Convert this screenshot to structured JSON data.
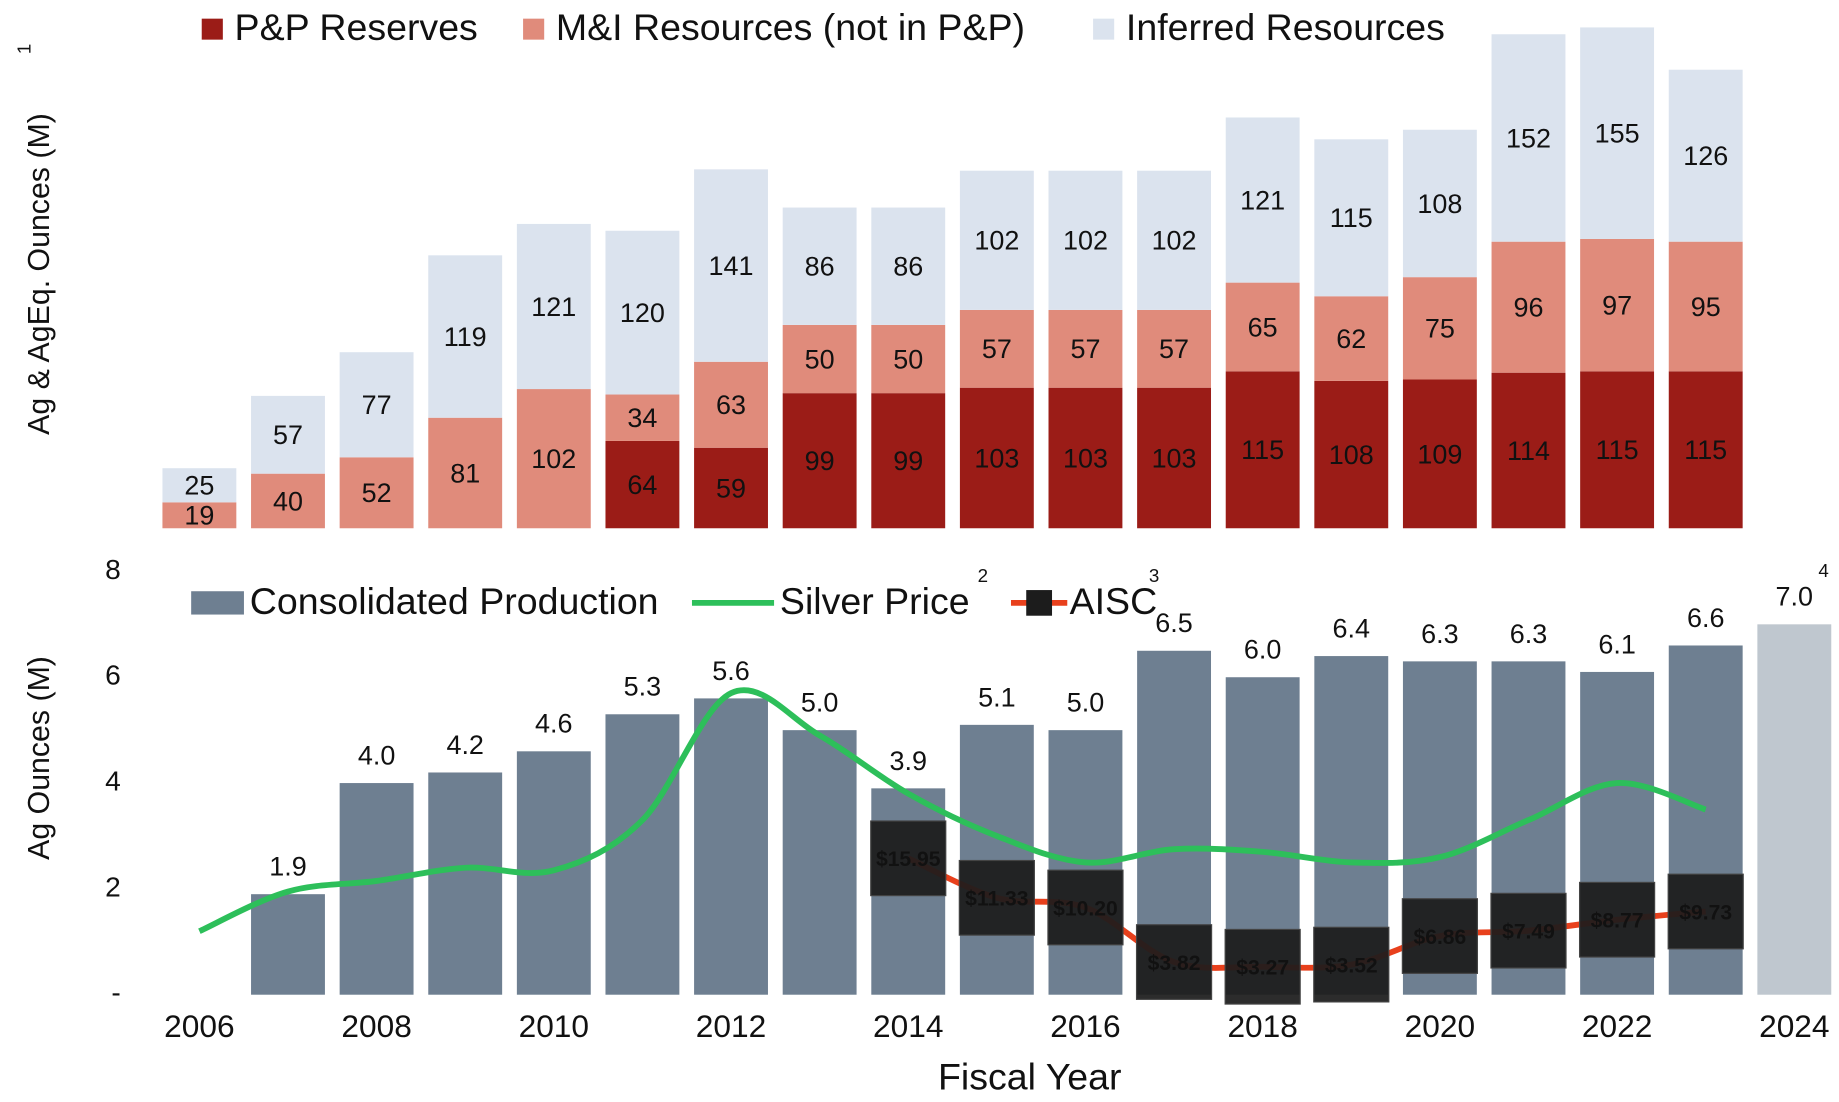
{
  "chart_data": [
    {
      "type": "stacked_bar",
      "ylabel": "Ag & AgEq. Ounces (M)",
      "ylabel_note": "1",
      "ylim": [
        0,
        370
      ],
      "series": [
        {
          "name": "P&P Reserves",
          "color": "#9b1c17",
          "values": [
            null,
            null,
            null,
            null,
            null,
            64,
            59,
            99,
            99,
            103,
            103,
            103,
            115,
            108,
            109,
            114,
            115,
            115
          ]
        },
        {
          "name": "M&I Resources (not in P&P)",
          "color": "#e08b7b",
          "values": [
            19,
            40,
            52,
            81,
            102,
            34,
            63,
            50,
            50,
            57,
            57,
            57,
            65,
            62,
            75,
            96,
            97,
            95
          ]
        },
        {
          "name": "Inferred Resources",
          "color": "#dbe3ee",
          "values": [
            25,
            57,
            77,
            119,
            121,
            120,
            141,
            86,
            86,
            102,
            102,
            102,
            121,
            115,
            108,
            152,
            155,
            126
          ]
        }
      ]
    },
    {
      "type": "bar_line",
      "xlabel": "Fiscal Year",
      "ylabel": "Ag Ounces (M)",
      "categories": [
        "2006",
        null,
        "2008",
        null,
        "2010",
        null,
        "2012",
        null,
        "2014",
        null,
        "2016",
        null,
        "2018",
        null,
        "2020",
        null,
        "2022",
        null,
        "2024"
      ],
      "ylim": [
        0,
        8
      ],
      "yticks": [
        {
          "value": 0,
          "label": "-"
        },
        2,
        4,
        6,
        8
      ],
      "y2lim": [
        0,
        49.5
      ],
      "series": [
        {
          "name": "Consolidated Production",
          "type": "bar",
          "color": "#6e7f91",
          "colors": [
            "#6e7f91",
            "#6e7f91",
            "#6e7f91",
            "#6e7f91",
            "#6e7f91",
            "#6e7f91",
            "#6e7f91",
            "#6e7f91",
            "#6e7f91",
            "#6e7f91",
            "#6e7f91",
            "#6e7f91",
            "#6e7f91",
            "#6e7f91",
            "#6e7f91",
            "#6e7f91",
            "#6e7f91",
            "#6e7f91",
            "#bfc7cf"
          ],
          "values": [
            null,
            1.9,
            4.0,
            4.2,
            4.6,
            5.3,
            5.6,
            5.0,
            3.9,
            5.1,
            5.0,
            6.5,
            6.0,
            6.4,
            6.3,
            6.3,
            6.1,
            6.6,
            7.0
          ],
          "value_labels": [
            null,
            "1.9",
            "4.0",
            "4.2",
            "4.6",
            "5.3",
            "5.6",
            "5.0",
            "3.9",
            "5.1",
            "5.0",
            "6.5",
            "6.0",
            "6.4",
            "6.3",
            "6.3",
            "6.1",
            "6.6",
            "7.0"
          ],
          "notes": [
            null,
            null,
            null,
            null,
            null,
            null,
            null,
            null,
            null,
            null,
            null,
            null,
            null,
            null,
            null,
            null,
            null,
            null,
            "4"
          ]
        },
        {
          "name": "Silver Price",
          "note": "2",
          "type": "line",
          "color": "#2dbf5a",
          "values": [
            1.2,
            1.95,
            2.15,
            2.4,
            2.35,
            3.3,
            5.7,
            4.9,
            3.8,
            3.0,
            2.5,
            2.75,
            2.7,
            2.5,
            2.6,
            3.3,
            4.0,
            3.5,
            null
          ]
        },
        {
          "name": "AISC",
          "note": "3",
          "type": "line_box",
          "axis": "y2",
          "color": "#e8401c",
          "box_color": "#1c1c1c",
          "values": [
            null,
            null,
            null,
            null,
            null,
            null,
            null,
            null,
            15.95,
            11.33,
            10.2,
            3.82,
            3.27,
            3.52,
            6.86,
            7.49,
            8.77,
            9.73,
            null
          ],
          "value_labels": [
            null,
            null,
            null,
            null,
            null,
            null,
            null,
            null,
            "$15.95",
            "$11.33",
            "$10.20",
            "$3.82",
            "$3.27",
            "$3.52",
            "$6.86",
            "$7.49",
            "$8.77",
            "$9.73",
            null
          ]
        }
      ]
    }
  ]
}
